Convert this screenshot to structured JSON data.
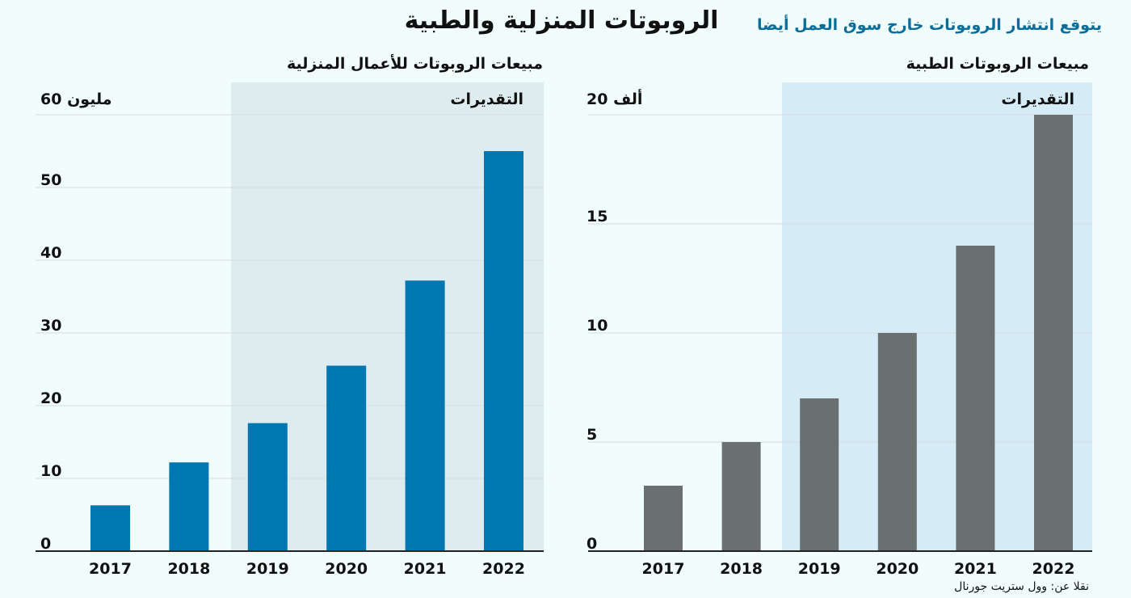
{
  "title": "الروبوتات المنزلية والطبية",
  "subtitle": "يتوقع انتشار الروبوتات خارج سوق العمل أيضا",
  "source": "نقلا عن: وول ستريت جورنال",
  "colors": {
    "background": "#f1fdfd",
    "home_bar": "#0077b0",
    "medical_bar": "#6a706f",
    "home_estimate_band": "#dfecef",
    "medical_estimate_band": "#d5ecf7",
    "subtitle": "#0a6e9a"
  },
  "chart_data": [
    {
      "type": "bar",
      "title": "مبيعات الروبوتات للأعمال المنزلية",
      "categories": [
        "2017",
        "2018",
        "2019",
        "2020",
        "2021",
        "2022"
      ],
      "values": [
        6.3,
        12.2,
        17.6,
        25.5,
        37.2,
        55
      ],
      "ylim": [
        0,
        60
      ],
      "yticks": [
        "0",
        "10",
        "20",
        "30",
        "40",
        "50",
        "60 مليون"
      ],
      "estimate_label": "التقديرات",
      "estimate_categories": [
        "2019",
        "2020",
        "2021",
        "2022"
      ],
      "grid": true
    },
    {
      "type": "bar",
      "title": "مبيعات الروبوتات الطبية",
      "categories": [
        "2017",
        "2018",
        "2019",
        "2020",
        "2021",
        "2022"
      ],
      "values": [
        3,
        5,
        7,
        10,
        14,
        20
      ],
      "ylim": [
        0,
        20
      ],
      "yticks": [
        "0",
        "5",
        "10",
        "15",
        "20 ألف"
      ],
      "estimate_label": "التقديرات",
      "estimate_categories": [
        "2019",
        "2020",
        "2021",
        "2022"
      ],
      "grid": true
    }
  ]
}
